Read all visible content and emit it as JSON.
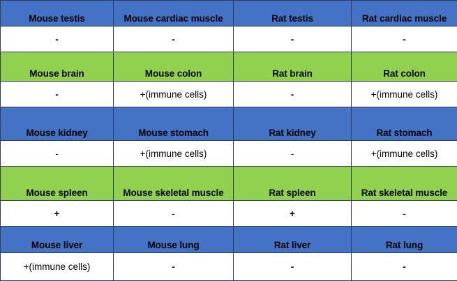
{
  "colors": {
    "blue_header": "#4472c4",
    "green_header": "#92d050",
    "value_row": "#ffffff"
  },
  "table": {
    "groups": [
      {
        "header_color": "blue",
        "tissues": [
          "Mouse testis",
          "Mouse cardiac muscle",
          "Rat testis",
          "Rat cardiac muscle"
        ],
        "results": [
          "-",
          "-",
          "-",
          "-"
        ],
        "bold": [
          true,
          true,
          true,
          true
        ]
      },
      {
        "header_color": "green",
        "tissues": [
          "Mouse brain",
          "Mouse colon",
          "Rat brain",
          "Rat colon"
        ],
        "results": [
          "-",
          "+(immune cells)",
          "-",
          "+(immune cells)"
        ],
        "bold": [
          true,
          false,
          true,
          false
        ]
      },
      {
        "header_color": "blue",
        "tissues": [
          "Mouse kidney",
          "Mouse stomach",
          "Rat kidney",
          "Rat stomach"
        ],
        "results": [
          "-",
          "+(immune cells)",
          "-",
          "+(immune cells)"
        ],
        "bold": [
          false,
          false,
          false,
          false
        ]
      },
      {
        "header_color": "green",
        "tissues": [
          "Mouse spleen",
          "Mouse skeletal muscle",
          "Rat spleen",
          "Rat skeletal muscle"
        ],
        "results": [
          "+",
          "-",
          "+",
          "-"
        ],
        "bold": [
          true,
          false,
          true,
          false
        ]
      },
      {
        "header_color": "blue",
        "tissues": [
          "Mouse liver",
          "Mouse lung",
          "Rat liver",
          "Rat lung"
        ],
        "results": [
          "+(immune cells)",
          "-",
          "-",
          "-"
        ],
        "bold": [
          false,
          true,
          true,
          true
        ]
      }
    ]
  }
}
